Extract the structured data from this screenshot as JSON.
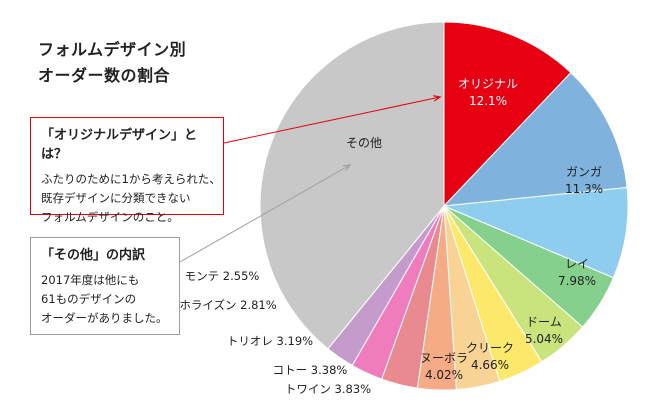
{
  "title_line1": "フォルムデザイン別",
  "title_line2": "オーダー数の割合",
  "note_original": {
    "heading": "「オリジナルデザイン」とは？",
    "lines": [
      "ふたりのために1から考えられた、",
      "既存デザインに分類できない",
      "フォルムデザインのこと。"
    ]
  },
  "note_other": {
    "heading": "「その他」の内訳",
    "lines": [
      "2017年度は他にも",
      "61ものデザインの",
      "オーダーがありました。"
    ]
  },
  "chart_data": {
    "type": "pie",
    "start": "12 o'clock",
    "direction": "clockwise",
    "slices": [
      {
        "name": "オリジナル",
        "value": 12.1,
        "label_value": "12.1%",
        "color": "#e60012",
        "text_color": "#ffffff",
        "label_style": "inside"
      },
      {
        "name": "ガンガ",
        "value": 11.3,
        "label_value": "11.3%",
        "color": "#7fb2dc",
        "text_color": "#222222",
        "label_style": "inside"
      },
      {
        "name": "レイ",
        "value": 7.98,
        "label_value": "7.98%",
        "color": "#8fcdef",
        "text_color": "#222222",
        "label_style": "inside"
      },
      {
        "name": "ドーム",
        "value": 5.04,
        "label_value": "5.04%",
        "color": "#86d08e",
        "text_color": "#222222",
        "label_style": "inside"
      },
      {
        "name": "クリーク",
        "value": 4.66,
        "label_value": "4.66%",
        "color": "#c9e37d",
        "text_color": "#222222",
        "label_style": "inside"
      },
      {
        "name": "ヌーボラ",
        "value": 4.02,
        "label_value": "4.02%",
        "color": "#fce86b",
        "text_color": "#222222",
        "label_style": "inside"
      },
      {
        "name": "トワイン",
        "value": 3.83,
        "label_value": "3.83%",
        "color": "#f9d396",
        "text_color": "#222222",
        "label_style": "outside"
      },
      {
        "name": "コトー",
        "value": 3.38,
        "label_value": "3.38%",
        "color": "#f5ac86",
        "text_color": "#222222",
        "label_style": "outside"
      },
      {
        "name": "トリオレ",
        "value": 3.19,
        "label_value": "3.19%",
        "color": "#e98a91",
        "text_color": "#222222",
        "label_style": "outside"
      },
      {
        "name": "ホライズン",
        "value": 2.81,
        "label_value": "2.81%",
        "color": "#ef7cbc",
        "text_color": "#222222",
        "label_style": "outside"
      },
      {
        "name": "モンテ",
        "value": 2.55,
        "label_value": "2.55%",
        "color": "#c59bcb",
        "text_color": "#222222",
        "label_style": "outside"
      },
      {
        "name": "その他",
        "value": 39.14,
        "label_value": "",
        "color": "#c8c8c8",
        "text_color": "#222222",
        "label_style": "inside"
      }
    ],
    "callout_colors": {
      "original": "#e60012",
      "other": "#9e9e9e"
    }
  }
}
